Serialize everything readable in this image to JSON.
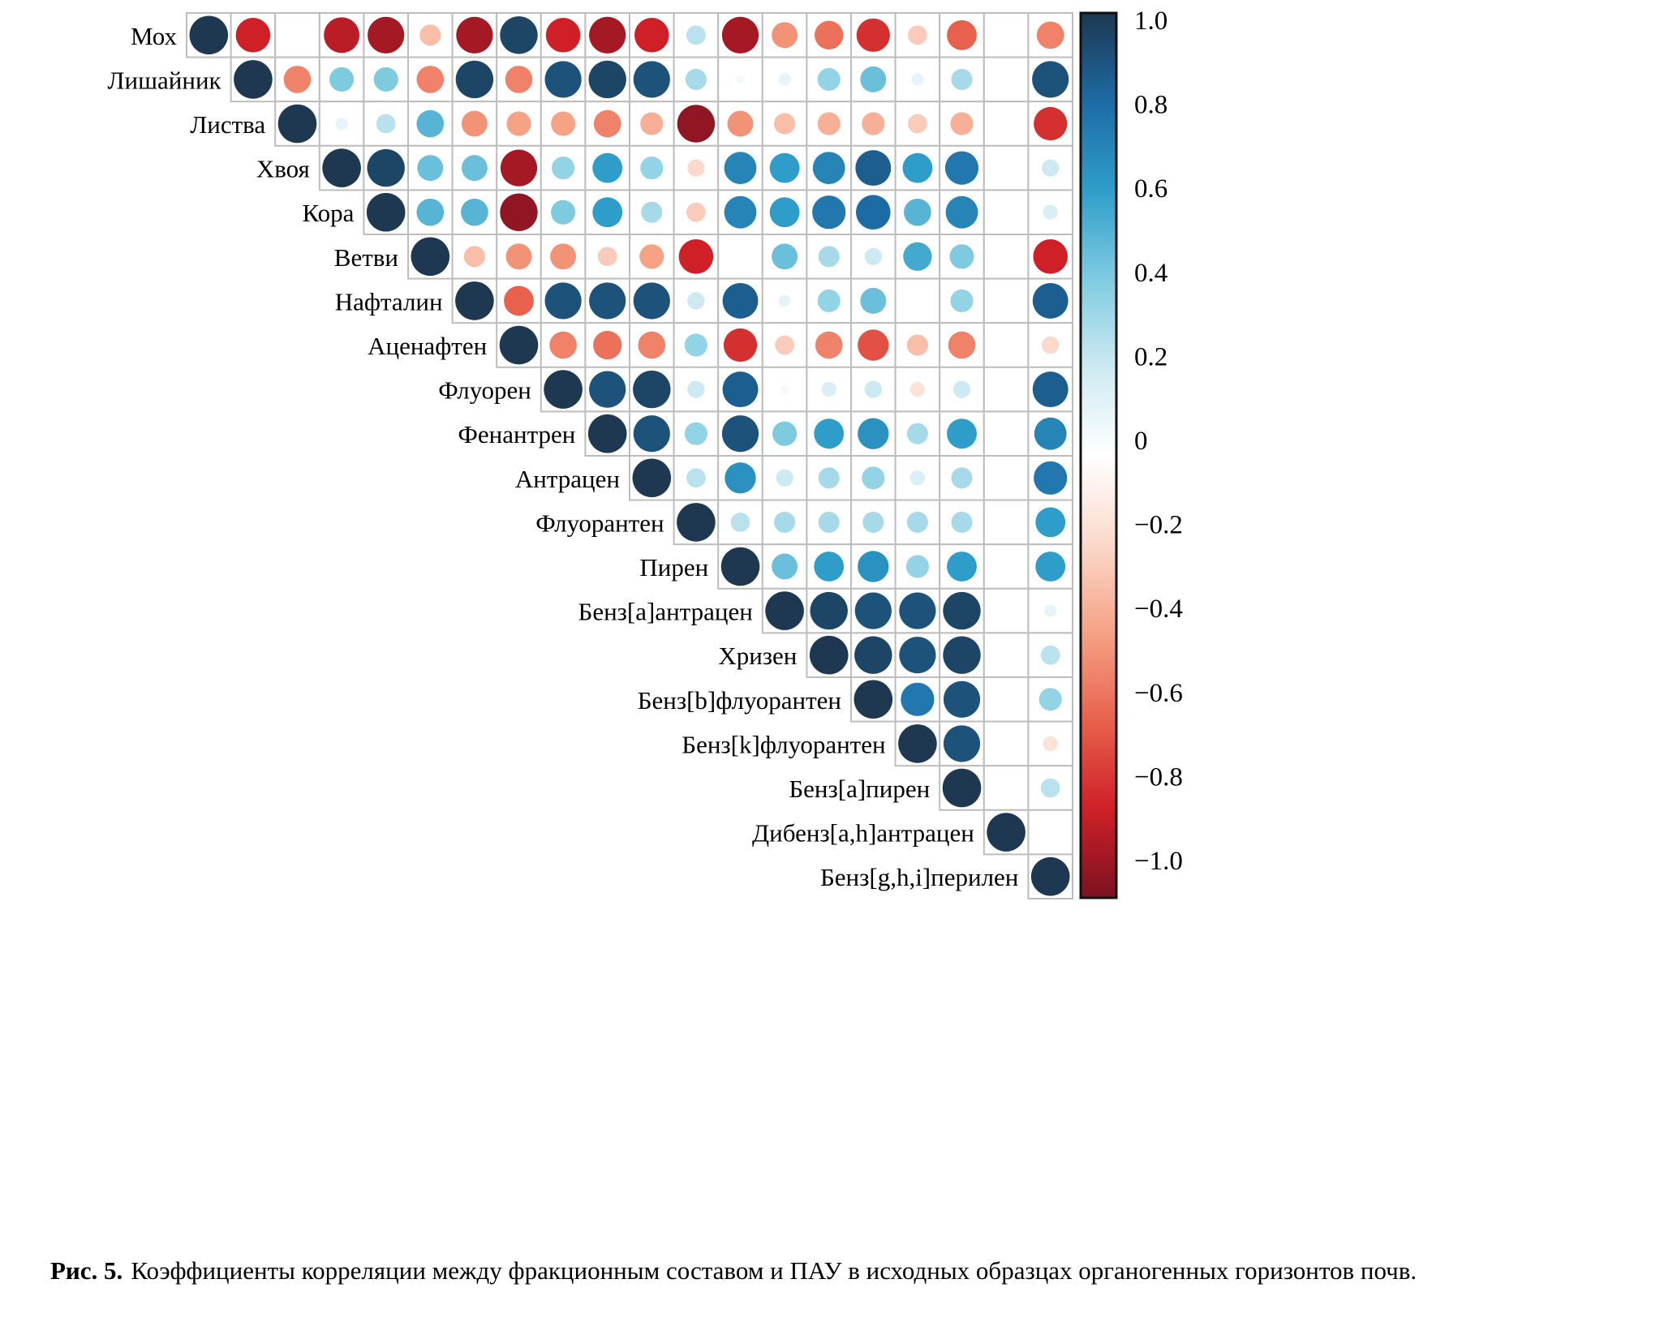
{
  "figure": {
    "caption_label": "Рис. 5.",
    "caption_text": "Коэффициенты корреляции между фракционным составом и ПАУ в исходных образцах органогенных горизонтов почв."
  },
  "chart_data": {
    "type": "heatmap",
    "subtype": "correlation-matrix-upper-triangle",
    "title": "",
    "value_range": [
      -1,
      1
    ],
    "labels": [
      "Мох",
      "Лишайник",
      "Листва",
      "Хвоя",
      "Кора",
      "Ветви",
      "Нафталин",
      "Аценафтен",
      "Флуорен",
      "Фенантрен",
      "Антрацен",
      "Флуорантен",
      "Пирен",
      "Бенз[a]антрацен",
      "Хризен",
      "Бенз[b]флуорантен",
      "Бенз[k]флуорантен",
      "Бенз[a]пирен",
      "Дибенз[a,h]антрацен",
      "Бенз[g,h,i]перилен"
    ],
    "matrix": [
      [
        1.0,
        -0.8,
        0.0,
        -0.85,
        -0.9,
        -0.3,
        -0.9,
        0.95,
        -0.8,
        -0.9,
        -0.8,
        0.25,
        -0.9,
        -0.45,
        -0.55,
        -0.75,
        -0.25,
        -0.6,
        0.0,
        -0.5
      ],
      [
        1.0,
        -0.5,
        0.4,
        0.4,
        -0.5,
        0.95,
        -0.5,
        0.9,
        0.95,
        0.9,
        0.3,
        0.05,
        0.1,
        0.35,
        0.45,
        0.1,
        0.3,
        0.0,
        0.9
      ],
      [
        1.0,
        0.1,
        0.25,
        0.5,
        -0.45,
        -0.4,
        -0.4,
        -0.5,
        -0.35,
        -0.95,
        -0.45,
        -0.3,
        -0.35,
        -0.35,
        -0.25,
        -0.35,
        0.0,
        -0.75
      ],
      [
        1.0,
        0.95,
        0.45,
        0.45,
        -0.9,
        0.35,
        0.6,
        0.35,
        -0.2,
        0.7,
        0.6,
        0.7,
        0.85,
        0.6,
        0.75,
        0.0,
        0.2
      ],
      [
        1.0,
        0.5,
        0.5,
        -0.95,
        0.4,
        0.6,
        0.3,
        -0.25,
        0.7,
        0.6,
        0.75,
        0.8,
        0.5,
        0.7,
        0.0,
        0.15
      ],
      [
        1.0,
        -0.3,
        -0.45,
        -0.45,
        -0.25,
        -0.4,
        -0.8,
        0.0,
        0.45,
        0.3,
        0.2,
        0.55,
        0.4,
        0.0,
        -0.8
      ],
      [
        1.0,
        -0.6,
        0.9,
        0.9,
        0.9,
        0.2,
        0.85,
        0.1,
        0.35,
        0.45,
        0.0,
        0.35,
        0.0,
        0.85
      ],
      [
        1.0,
        -0.5,
        -0.55,
        -0.5,
        0.35,
        -0.75,
        -0.25,
        -0.5,
        -0.65,
        -0.3,
        -0.5,
        0.0,
        -0.2
      ],
      [
        1.0,
        0.9,
        0.95,
        0.2,
        0.85,
        0.05,
        0.15,
        0.2,
        -0.15,
        0.2,
        0.0,
        0.85
      ],
      [
        1.0,
        0.9,
        0.35,
        0.9,
        0.4,
        0.6,
        0.65,
        0.3,
        0.6,
        0.0,
        0.7
      ],
      [
        1.0,
        0.25,
        0.65,
        0.2,
        0.3,
        0.35,
        0.15,
        0.3,
        0.0,
        0.75
      ],
      [
        1.0,
        0.25,
        0.3,
        0.3,
        0.3,
        0.3,
        0.3,
        0.0,
        0.6
      ],
      [
        1.0,
        0.45,
        0.6,
        0.65,
        0.35,
        0.6,
        0.0,
        0.6
      ],
      [
        1.0,
        0.95,
        0.9,
        0.9,
        0.95,
        0.0,
        0.1
      ],
      [
        1.0,
        0.95,
        0.9,
        0.95,
        0.0,
        0.25
      ],
      [
        1.0,
        0.75,
        0.9,
        0.0,
        0.35
      ],
      [
        1.0,
        0.9,
        0.0,
        -0.15
      ],
      [
        1.0,
        0.0,
        0.25
      ],
      [
        1.0,
        0.0
      ],
      [
        1.0
      ]
    ],
    "colorbar": {
      "position": "right",
      "ticks": [
        1.0,
        0.8,
        0.6,
        0.4,
        0.2,
        0,
        -0.2,
        -0.4,
        -0.6,
        -0.8,
        -1.0
      ],
      "tick_labels": [
        "1.0",
        "0.8",
        "0.6",
        "0.4",
        "0.2",
        "0",
        "−0.2",
        "−0.4",
        "−0.6",
        "−0.8",
        "−1.0"
      ]
    },
    "colormap": {
      "stops": [
        {
          "v": -1.0,
          "color": "#7a1220"
        },
        {
          "v": -0.8,
          "color": "#cf2027"
        },
        {
          "v": -0.6,
          "color": "#e8614c"
        },
        {
          "v": -0.4,
          "color": "#f5a285"
        },
        {
          "v": -0.2,
          "color": "#fbd9cb"
        },
        {
          "v": 0.0,
          "color": "#ffffff"
        },
        {
          "v": 0.2,
          "color": "#cde9f2"
        },
        {
          "v": 0.4,
          "color": "#7ecbe0"
        },
        {
          "v": 0.6,
          "color": "#2f9dc9"
        },
        {
          "v": 0.8,
          "color": "#1d6ba5"
        },
        {
          "v": 1.0,
          "color": "#1d3850"
        }
      ]
    },
    "grid": true,
    "grid_color": "#bdbdbd"
  }
}
